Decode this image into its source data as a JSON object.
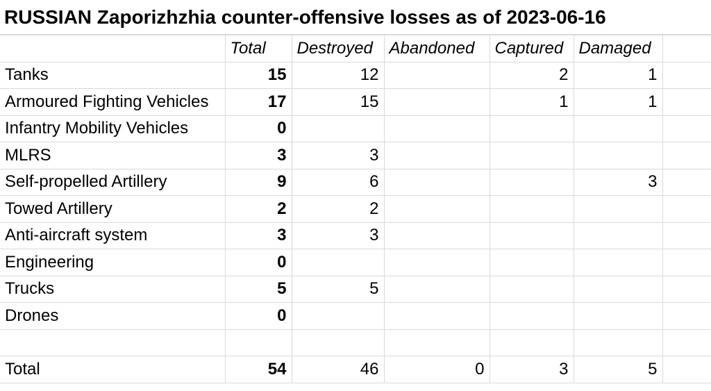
{
  "title": "RUSSIAN Zaporizhzhia counter-offensive losses as of 2023-06-16",
  "chart_data": {
    "type": "table",
    "columns": [
      "Total",
      "Destroyed",
      "Abandoned",
      "Captured",
      "Damaged"
    ],
    "rows": [
      {
        "label": "Tanks",
        "values": [
          "15",
          "12",
          "",
          "2",
          "1"
        ]
      },
      {
        "label": "Armoured Fighting Vehicles",
        "values": [
          "17",
          "15",
          "",
          "1",
          "1"
        ]
      },
      {
        "label": "Infantry Mobility Vehicles",
        "values": [
          "0",
          "",
          "",
          "",
          ""
        ]
      },
      {
        "label": "MLRS",
        "values": [
          "3",
          "3",
          "",
          "",
          ""
        ]
      },
      {
        "label": "Self-propelled Artillery",
        "values": [
          "9",
          "6",
          "",
          "",
          "3"
        ]
      },
      {
        "label": "Towed Artillery",
        "values": [
          "2",
          "2",
          "",
          "",
          ""
        ]
      },
      {
        "label": "Anti-aircraft system",
        "values": [
          "3",
          "3",
          "",
          "",
          ""
        ]
      },
      {
        "label": "Engineering",
        "values": [
          "0",
          "",
          "",
          "",
          ""
        ]
      },
      {
        "label": "Trucks",
        "values": [
          "5",
          "5",
          "",
          "",
          ""
        ]
      },
      {
        "label": "Drones",
        "values": [
          "0",
          "",
          "",
          "",
          ""
        ]
      },
      {
        "label": "",
        "values": [
          "",
          "",
          "",
          "",
          ""
        ]
      },
      {
        "label": "Total",
        "values": [
          "54",
          "46",
          "0",
          "3",
          "5"
        ]
      }
    ]
  }
}
